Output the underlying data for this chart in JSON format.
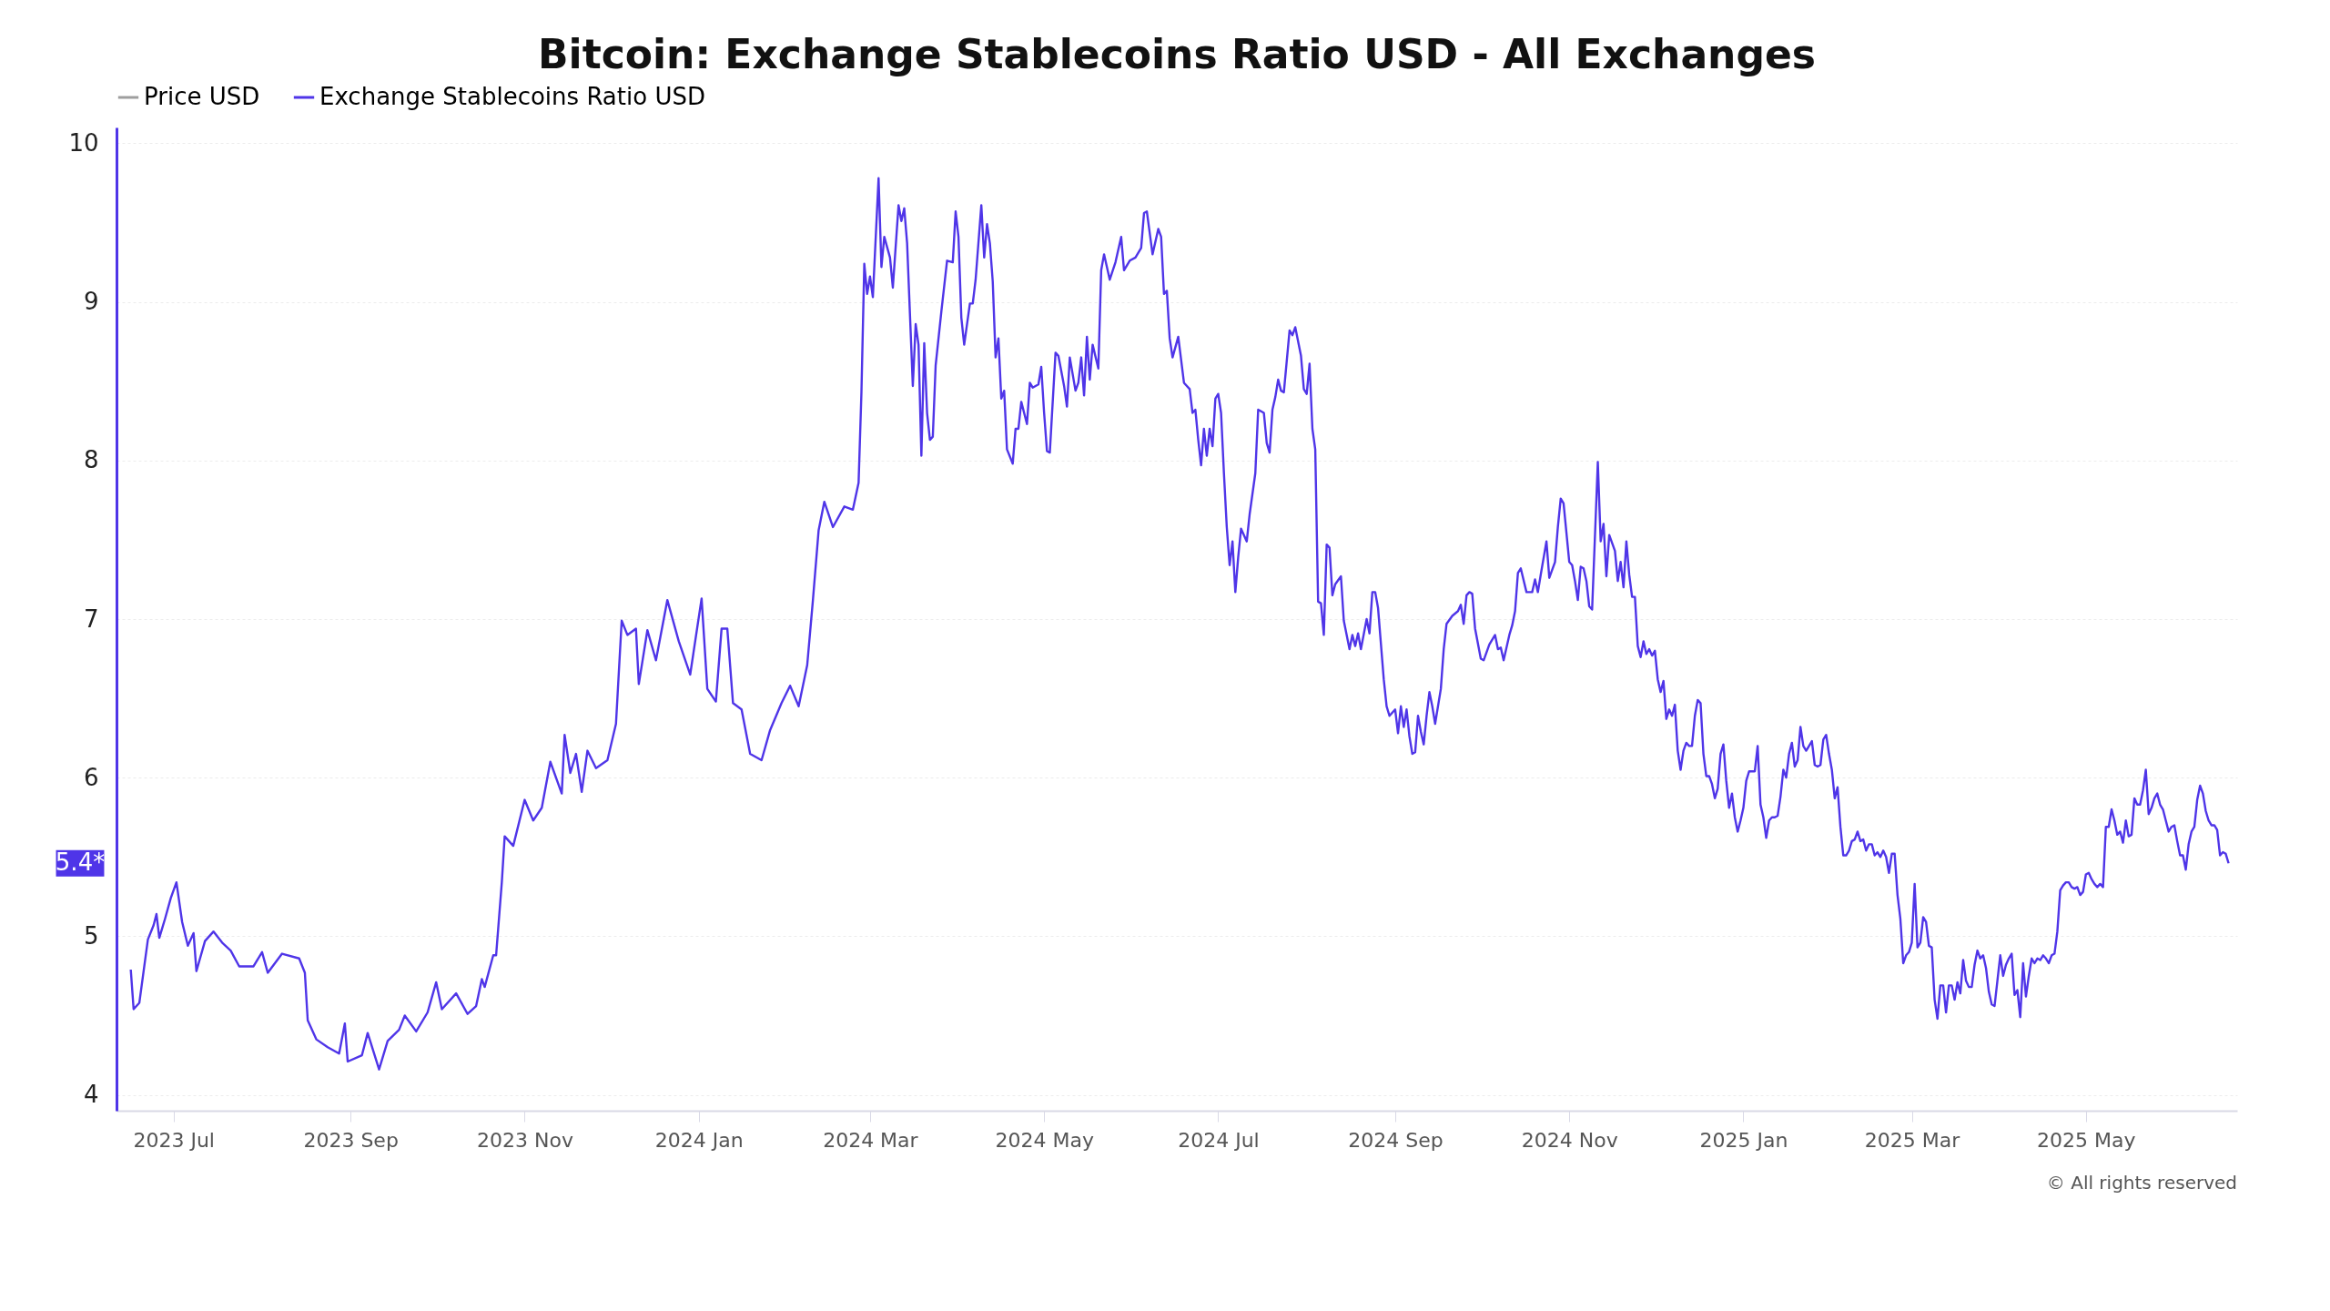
{
  "chart_data": {
    "type": "line",
    "title": "Bitcoin: Exchange Stablecoins Ratio USD - All Exchanges",
    "legend": "top",
    "grid": "y",
    "line_style": "solid",
    "xlim": [
      "2023-06-11",
      "2025-06-23"
    ],
    "ylim": [
      3.9,
      10.1
    ],
    "yticks": [
      4,
      5,
      6,
      7,
      8,
      9,
      10
    ],
    "xticks": [
      {
        "value": "2023-07-01",
        "label": "2023 Jul"
      },
      {
        "value": "2023-09-01",
        "label": "2023 Sep"
      },
      {
        "value": "2023-11-01",
        "label": "2023 Nov"
      },
      {
        "value": "2024-01-01",
        "label": "2024 Jan"
      },
      {
        "value": "2024-03-01",
        "label": "2024 Mar"
      },
      {
        "value": "2024-05-01",
        "label": "2024 May"
      },
      {
        "value": "2024-07-01",
        "label": "2024 Jul"
      },
      {
        "value": "2024-09-01",
        "label": "2024 Sep"
      },
      {
        "value": "2024-11-01",
        "label": "2024 Nov"
      },
      {
        "value": "2025-01-01",
        "label": "2025 Jan"
      },
      {
        "value": "2025-03-01",
        "label": "2025 Mar"
      },
      {
        "value": "2025-05-01",
        "label": "2025 May"
      }
    ],
    "annotations": [
      "5.4*",
      "© All rights reserved"
    ],
    "series": [
      {
        "name": "Price USD",
        "color": "#9e9e9e"
      },
      {
        "name": "Exchange Stablecoins Ratio USD",
        "color": "#4f35e8",
        "x": [
          "2023-06-16",
          "2023-06-17",
          "2023-06-19",
          "2023-06-22",
          "2023-06-24",
          "2023-06-25",
          "2023-06-26",
          "2023-06-28",
          "2023-06-30",
          "2023-07-02",
          "2023-07-04",
          "2023-07-06",
          "2023-07-08",
          "2023-07-09",
          "2023-07-12",
          "2023-07-15",
          "2023-07-18",
          "2023-07-21",
          "2023-07-24",
          "2023-07-29",
          "2023-08-01",
          "2023-08-03",
          "2023-08-08",
          "2023-08-14",
          "2023-08-16",
          "2023-08-17",
          "2023-08-20",
          "2023-08-24",
          "2023-08-28",
          "2023-08-30",
          "2023-08-31",
          "2023-09-05",
          "2023-09-07",
          "2023-09-11",
          "2023-09-14",
          "2023-09-18",
          "2023-09-20",
          "2023-09-24",
          "2023-09-28",
          "2023-10-01",
          "2023-10-03",
          "2023-10-08",
          "2023-10-12",
          "2023-10-15",
          "2023-10-17",
          "2023-10-18",
          "2023-10-21",
          "2023-10-22",
          "2023-10-24",
          "2023-10-25",
          "2023-10-28",
          "2023-11-01",
          "2023-11-04",
          "2023-11-07",
          "2023-11-10",
          "2023-11-14",
          "2023-11-15",
          "2023-11-17",
          "2023-11-19",
          "2023-11-21",
          "2023-11-23",
          "2023-11-26",
          "2023-11-30",
          "2023-12-03",
          "2023-12-05",
          "2023-12-07",
          "2023-12-10",
          "2023-12-11",
          "2023-12-14",
          "2023-12-17",
          "2023-12-21",
          "2023-12-25",
          "2023-12-29",
          "2024-01-02",
          "2024-01-04",
          "2024-01-07",
          "2024-01-09",
          "2024-01-11",
          "2024-01-13",
          "2024-01-16",
          "2024-01-19",
          "2024-01-23",
          "2024-01-26",
          "2024-01-30",
          "2024-02-02",
          "2024-02-05",
          "2024-02-08",
          "2024-02-10",
          "2024-02-12",
          "2024-02-14",
          "2024-02-17",
          "2024-02-21",
          "2024-02-24",
          "2024-02-26",
          "2024-02-27",
          "2024-02-28",
          "2024-02-29",
          "2024-03-01",
          "2024-03-02",
          "2024-03-04",
          "2024-03-05",
          "2024-03-06",
          "2024-03-08",
          "2024-03-09",
          "2024-03-11",
          "2024-03-12",
          "2024-03-13",
          "2024-03-14",
          "2024-03-16",
          "2024-03-17",
          "2024-03-18",
          "2024-03-19",
          "2024-03-20",
          "2024-03-21",
          "2024-03-22",
          "2024-03-23",
          "2024-03-24",
          "2024-03-26",
          "2024-03-28",
          "2024-03-30",
          "2024-03-31",
          "2024-04-01",
          "2024-04-02",
          "2024-04-03",
          "2024-04-05",
          "2024-04-06",
          "2024-04-07",
          "2024-04-09",
          "2024-04-10",
          "2024-04-11",
          "2024-04-12",
          "2024-04-13",
          "2024-04-14",
          "2024-04-15",
          "2024-04-16",
          "2024-04-17",
          "2024-04-18",
          "2024-04-20",
          "2024-04-21",
          "2024-04-22",
          "2024-04-23",
          "2024-04-25",
          "2024-04-26",
          "2024-04-27",
          "2024-04-29",
          "2024-04-30",
          "2024-05-01",
          "2024-05-02",
          "2024-05-03",
          "2024-05-05",
          "2024-05-06",
          "2024-05-08",
          "2024-05-09",
          "2024-05-10",
          "2024-05-12",
          "2024-05-13",
          "2024-05-14",
          "2024-05-15",
          "2024-05-16",
          "2024-05-17",
          "2024-05-18",
          "2024-05-20",
          "2024-05-21",
          "2024-05-22",
          "2024-05-24",
          "2024-05-26",
          "2024-05-28",
          "2024-05-29",
          "2024-05-31",
          "2024-06-02",
          "2024-06-04",
          "2024-06-05",
          "2024-06-06",
          "2024-06-08",
          "2024-06-10",
          "2024-06-11",
          "2024-06-12",
          "2024-06-13",
          "2024-06-14",
          "2024-06-15",
          "2024-06-17",
          "2024-06-19",
          "2024-06-21",
          "2024-06-22",
          "2024-06-23",
          "2024-06-24",
          "2024-06-25",
          "2024-06-26",
          "2024-06-27",
          "2024-06-28",
          "2024-06-29",
          "2024-06-30",
          "2024-07-01",
          "2024-07-02",
          "2024-07-03",
          "2024-07-04",
          "2024-07-05",
          "2024-07-06",
          "2024-07-07",
          "2024-07-08",
          "2024-07-09",
          "2024-07-11",
          "2024-07-12",
          "2024-07-14",
          "2024-07-15",
          "2024-07-17",
          "2024-07-18",
          "2024-07-19",
          "2024-07-20",
          "2024-07-21",
          "2024-07-22",
          "2024-07-23",
          "2024-07-24",
          "2024-07-26",
          "2024-07-27",
          "2024-07-28",
          "2024-07-30",
          "2024-07-31",
          "2024-08-01",
          "2024-08-02",
          "2024-08-03",
          "2024-08-04",
          "2024-08-05",
          "2024-08-06",
          "2024-08-07",
          "2024-08-08",
          "2024-08-09",
          "2024-08-10",
          "2024-08-11",
          "2024-08-13",
          "2024-08-14",
          "2024-08-16",
          "2024-08-17",
          "2024-08-18",
          "2024-08-19",
          "2024-08-20",
          "2024-08-22",
          "2024-08-23",
          "2024-08-24",
          "2024-08-25",
          "2024-08-26",
          "2024-08-28",
          "2024-08-29",
          "2024-08-30",
          "2024-09-01",
          "2024-09-02",
          "2024-09-03",
          "2024-09-04",
          "2024-09-05",
          "2024-09-06",
          "2024-09-07",
          "2024-09-08",
          "2024-09-09",
          "2024-09-10",
          "2024-09-11",
          "2024-09-12",
          "2024-09-13",
          "2024-09-14",
          "2024-09-15",
          "2024-09-17",
          "2024-09-18",
          "2024-09-19",
          "2024-09-21",
          "2024-09-23",
          "2024-09-24",
          "2024-09-25",
          "2024-09-26",
          "2024-09-27",
          "2024-09-28",
          "2024-09-29",
          "2024-10-01",
          "2024-10-02",
          "2024-10-04",
          "2024-10-06",
          "2024-10-07",
          "2024-10-08",
          "2024-10-09",
          "2024-10-11",
          "2024-10-12",
          "2024-10-13",
          "2024-10-14",
          "2024-10-15",
          "2024-10-17",
          "2024-10-19",
          "2024-10-20",
          "2024-10-21",
          "2024-10-22",
          "2024-10-24",
          "2024-10-25",
          "2024-10-27",
          "2024-10-28",
          "2024-10-29",
          "2024-10-30",
          "2024-11-01",
          "2024-11-02",
          "2024-11-03",
          "2024-11-04",
          "2024-11-05",
          "2024-11-06",
          "2024-11-07",
          "2024-11-08",
          "2024-11-09",
          "2024-11-11",
          "2024-11-12",
          "2024-11-13",
          "2024-11-14",
          "2024-11-15",
          "2024-11-17",
          "2024-11-18",
          "2024-11-19",
          "2024-11-20",
          "2024-11-21",
          "2024-11-22",
          "2024-11-23",
          "2024-11-24",
          "2024-11-25",
          "2024-11-26",
          "2024-11-27",
          "2024-11-28",
          "2024-11-29",
          "2024-11-30",
          "2024-12-01",
          "2024-12-02",
          "2024-12-03",
          "2024-12-04",
          "2024-12-05",
          "2024-12-06",
          "2024-12-07",
          "2024-12-08",
          "2024-12-09",
          "2024-12-10",
          "2024-12-11",
          "2024-12-12",
          "2024-12-13",
          "2024-12-14",
          "2024-12-15",
          "2024-12-16",
          "2024-12-17",
          "2024-12-18",
          "2024-12-19",
          "2024-12-20",
          "2024-12-21",
          "2024-12-22",
          "2024-12-23",
          "2024-12-24",
          "2024-12-25",
          "2024-12-26",
          "2024-12-27",
          "2024-12-28",
          "2024-12-29",
          "2024-12-30",
          "2024-12-31",
          "2025-01-01",
          "2025-01-02",
          "2025-01-03",
          "2025-01-04",
          "2025-01-05",
          "2025-01-06",
          "2025-01-07",
          "2025-01-08",
          "2025-01-09",
          "2025-01-10",
          "2025-01-11",
          "2025-01-12",
          "2025-01-13",
          "2025-01-14",
          "2025-01-15",
          "2025-01-16",
          "2025-01-17",
          "2025-01-18",
          "2025-01-19",
          "2025-01-20",
          "2025-01-21",
          "2025-01-22",
          "2025-01-23",
          "2025-01-24",
          "2025-01-25",
          "2025-01-26",
          "2025-01-27",
          "2025-01-28",
          "2025-01-29",
          "2025-01-30",
          "2025-01-31",
          "2025-02-01",
          "2025-02-02",
          "2025-02-03",
          "2025-02-04",
          "2025-02-05",
          "2025-02-06",
          "2025-02-07",
          "2025-02-08",
          "2025-02-09",
          "2025-02-10",
          "2025-02-11",
          "2025-02-12",
          "2025-02-13",
          "2025-02-14",
          "2025-02-15",
          "2025-02-16",
          "2025-02-17",
          "2025-02-18",
          "2025-02-19",
          "2025-02-20",
          "2025-02-21",
          "2025-02-22",
          "2025-02-23",
          "2025-02-24",
          "2025-02-25",
          "2025-02-26",
          "2025-02-27",
          "2025-02-28",
          "2025-03-01",
          "2025-03-02",
          "2025-03-03",
          "2025-03-04",
          "2025-03-05",
          "2025-03-06",
          "2025-03-07",
          "2025-03-08",
          "2025-03-09",
          "2025-03-10",
          "2025-03-11",
          "2025-03-12",
          "2025-03-13",
          "2025-03-14",
          "2025-03-15",
          "2025-03-16",
          "2025-03-17",
          "2025-03-18",
          "2025-03-19",
          "2025-03-20",
          "2025-03-21",
          "2025-03-22",
          "2025-03-23",
          "2025-03-24",
          "2025-03-25",
          "2025-03-26",
          "2025-03-27",
          "2025-03-28",
          "2025-03-29",
          "2025-03-30",
          "2025-03-31",
          "2025-04-01",
          "2025-04-02",
          "2025-04-03",
          "2025-04-04",
          "2025-04-05",
          "2025-04-06",
          "2025-04-07",
          "2025-04-08",
          "2025-04-09",
          "2025-04-10",
          "2025-04-11",
          "2025-04-12",
          "2025-04-13",
          "2025-04-14",
          "2025-04-15",
          "2025-04-16",
          "2025-04-17",
          "2025-04-18",
          "2025-04-19",
          "2025-04-20",
          "2025-04-21",
          "2025-04-22",
          "2025-04-23",
          "2025-04-24",
          "2025-04-25",
          "2025-04-26",
          "2025-04-27",
          "2025-04-28",
          "2025-04-29",
          "2025-04-30",
          "2025-05-01",
          "2025-05-02",
          "2025-05-03",
          "2025-05-04",
          "2025-05-05",
          "2025-05-06",
          "2025-05-07",
          "2025-05-08",
          "2025-05-09",
          "2025-05-10",
          "2025-05-11",
          "2025-05-12",
          "2025-05-13",
          "2025-05-14",
          "2025-05-15",
          "2025-05-16",
          "2025-05-17",
          "2025-05-18",
          "2025-05-19",
          "2025-05-20",
          "2025-05-21",
          "2025-05-22",
          "2025-05-23",
          "2025-05-24",
          "2025-05-25",
          "2025-05-26",
          "2025-05-27",
          "2025-05-28",
          "2025-05-29",
          "2025-05-30",
          "2025-05-31",
          "2025-06-01",
          "2025-06-02",
          "2025-06-03",
          "2025-06-04",
          "2025-06-05",
          "2025-06-06",
          "2025-06-07",
          "2025-06-08",
          "2025-06-09",
          "2025-06-10",
          "2025-06-11",
          "2025-06-12",
          "2025-06-13",
          "2025-06-14",
          "2025-06-15",
          "2025-06-16",
          "2025-06-17",
          "2025-06-18",
          "2025-06-19",
          "2025-06-20"
        ],
        "values": [
          4.79,
          4.54,
          4.58,
          4.98,
          5.07,
          5.14,
          4.99,
          5.11,
          5.24,
          5.34,
          5.09,
          4.94,
          5.02,
          4.78,
          4.97,
          5.03,
          4.96,
          4.91,
          4.81,
          4.81,
          4.9,
          4.77,
          4.89,
          4.86,
          4.77,
          4.47,
          4.35,
          4.3,
          4.26,
          4.45,
          4.21,
          4.25,
          4.39,
          4.16,
          4.34,
          4.41,
          4.5,
          4.4,
          4.52,
          4.71,
          4.54,
          4.64,
          4.51,
          4.56,
          4.73,
          4.68,
          4.88,
          4.88,
          5.34,
          5.63,
          5.57,
          5.86,
          5.73,
          5.81,
          6.1,
          5.9,
          6.27,
          6.03,
          6.15,
          5.91,
          6.17,
          6.06,
          6.11,
          6.34,
          6.99,
          6.9,
          6.94,
          6.59,
          6.93,
          6.74,
          7.12,
          6.86,
          6.65,
          7.13,
          6.56,
          6.48,
          6.94,
          6.94,
          6.47,
          6.43,
          6.15,
          6.11,
          6.3,
          6.47,
          6.58,
          6.45,
          6.71,
          7.12,
          7.56,
          7.74,
          7.58,
          7.71,
          7.69,
          7.86,
          8.43,
          9.24,
          9.05,
          9.16,
          9.03,
          9.78,
          9.22,
          9.41,
          9.28,
          9.09,
          9.61,
          9.51,
          9.59,
          9.37,
          8.47,
          8.86,
          8.73,
          8.03,
          8.74,
          8.3,
          8.13,
          8.15,
          8.6,
          8.94,
          9.26,
          9.25,
          9.57,
          9.41,
          8.9,
          8.73,
          8.99,
          8.99,
          9.14,
          9.61,
          9.28,
          9.49,
          9.37,
          9.13,
          8.65,
          8.77,
          8.39,
          8.44,
          8.07,
          7.98,
          8.2,
          8.2,
          8.37,
          8.23,
          8.49,
          8.46,
          8.48,
          8.59,
          8.3,
          8.06,
          8.05,
          8.68,
          8.66,
          8.47,
          8.34,
          8.65,
          8.44,
          8.49,
          8.65,
          8.41,
          8.78,
          8.51,
          8.73,
          8.58,
          9.2,
          9.3,
          9.14,
          9.25,
          9.41,
          9.2,
          9.26,
          9.28,
          9.34,
          9.56,
          9.57,
          9.3,
          9.46,
          9.41,
          9.05,
          9.07,
          8.77,
          8.65,
          8.78,
          8.49,
          8.45,
          8.3,
          8.32,
          8.13,
          7.97,
          8.2,
          8.03,
          8.2,
          8.09,
          8.39,
          8.42,
          8.3,
          7.92,
          7.58,
          7.34,
          7.49,
          7.17,
          7.39,
          7.57,
          7.49,
          7.66,
          7.92,
          8.32,
          8.3,
          8.11,
          8.05,
          8.32,
          8.4,
          8.51,
          8.44,
          8.43,
          8.82,
          8.79,
          8.84,
          8.66,
          8.45,
          8.42,
          8.61,
          8.2,
          8.07,
          7.11,
          7.1,
          6.9,
          7.47,
          7.45,
          7.15,
          7.22,
          7.27,
          6.99,
          6.81,
          6.9,
          6.83,
          6.91,
          6.81,
          7.0,
          6.91,
          7.17,
          7.17,
          7.07,
          6.62,
          6.45,
          6.39,
          6.43,
          6.28,
          6.45,
          6.32,
          6.43,
          6.26,
          6.15,
          6.16,
          6.39,
          6.29,
          6.21,
          6.39,
          6.54,
          6.45,
          6.34,
          6.56,
          6.81,
          6.97,
          7.02,
          7.05,
          7.09,
          6.97,
          7.15,
          7.17,
          7.16,
          6.94,
          6.75,
          6.74,
          6.84,
          6.9,
          6.81,
          6.82,
          6.74,
          6.9,
          6.96,
          7.05,
          7.29,
          7.32,
          7.17,
          7.17,
          7.25,
          7.17,
          7.28,
          7.49,
          7.26,
          7.36,
          7.58,
          7.76,
          7.73,
          7.36,
          7.34,
          7.24,
          7.12,
          7.33,
          7.32,
          7.24,
          7.08,
          7.06,
          7.99,
          7.49,
          7.6,
          7.27,
          7.53,
          7.43,
          7.24,
          7.36,
          7.2,
          7.49,
          7.28,
          7.14,
          7.14,
          6.83,
          6.76,
          6.86,
          6.78,
          6.81,
          6.77,
          6.8,
          6.62,
          6.54,
          6.61,
          6.37,
          6.43,
          6.39,
          6.46,
          6.17,
          6.05,
          6.17,
          6.22,
          6.2,
          6.2,
          6.39,
          6.49,
          6.47,
          6.15,
          6.01,
          6.01,
          5.96,
          5.87,
          5.93,
          6.15,
          6.21,
          5.98,
          5.81,
          5.9,
          5.75,
          5.66,
          5.73,
          5.81,
          5.98,
          6.04,
          6.04,
          6.04,
          6.2,
          5.83,
          5.75,
          5.62,
          5.73,
          5.75,
          5.75,
          5.76,
          5.88,
          6.05,
          6.0,
          6.15,
          6.22,
          6.07,
          6.11,
          6.32,
          6.2,
          6.17,
          6.2,
          6.23,
          6.08,
          6.07,
          6.08,
          6.24,
          6.27,
          6.15,
          6.05,
          5.87,
          5.94,
          5.69,
          5.51,
          5.51,
          5.54,
          5.6,
          5.61,
          5.66,
          5.6,
          5.61,
          5.54,
          5.58,
          5.58,
          5.51,
          5.53,
          5.5,
          5.54,
          5.5,
          5.4,
          5.52,
          5.52,
          5.26,
          5.11,
          4.83,
          4.88,
          4.9,
          4.96,
          5.33,
          4.93,
          4.96,
          5.12,
          5.09,
          4.94,
          4.93,
          4.6,
          4.48,
          4.69,
          4.69,
          4.52,
          4.69,
          4.69,
          4.6,
          4.71,
          4.64,
          4.85,
          4.72,
          4.68,
          4.68,
          4.82,
          4.91,
          4.86,
          4.88,
          4.8,
          4.65,
          4.57,
          4.56,
          4.72,
          4.88,
          4.75,
          4.82,
          4.86,
          4.89,
          4.63,
          4.66,
          4.49,
          4.83,
          4.62,
          4.75,
          4.86,
          4.83,
          4.86,
          4.85,
          4.88,
          4.86,
          4.83,
          4.88,
          4.89,
          5.03,
          5.29,
          5.32,
          5.34,
          5.34,
          5.31,
          5.3,
          5.31,
          5.26,
          5.28,
          5.39,
          5.4,
          5.36,
          5.33,
          5.31,
          5.33,
          5.31,
          5.69,
          5.69,
          5.8,
          5.73,
          5.64,
          5.66,
          5.59,
          5.73,
          5.63,
          5.64,
          5.87,
          5.83,
          5.83,
          5.92,
          6.05,
          5.77,
          5.81,
          5.87,
          5.9,
          5.83,
          5.8,
          5.73,
          5.66,
          5.69,
          5.7,
          5.6,
          5.51,
          5.51,
          5.42,
          5.58,
          5.66,
          5.69,
          5.86,
          5.95,
          5.9,
          5.79,
          5.73,
          5.7,
          5.7,
          5.67,
          5.51,
          5.53,
          5.52,
          5.46
        ]
      }
    ]
  }
}
